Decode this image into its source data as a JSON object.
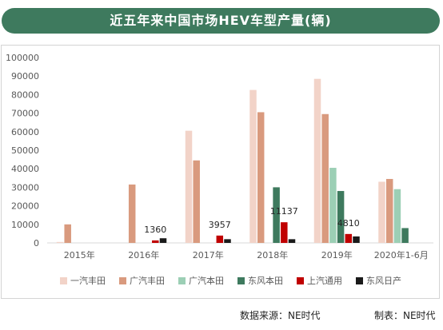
{
  "header": {
    "title": "近五年来中国市场HEV车型产量(辆)"
  },
  "footer": {
    "source": "数据来源：NE时代",
    "author": "制表：NE时代"
  },
  "chart_data": {
    "type": "bar",
    "title": "近五年来中国市场HEV车型产量(辆)",
    "categories": [
      "2015年",
      "2016年",
      "2017年",
      "2018年",
      "2019年",
      "2020年1-6月"
    ],
    "ylim": [
      0,
      100000
    ],
    "yticks": [
      0,
      10000,
      20000,
      30000,
      40000,
      50000,
      60000,
      70000,
      80000,
      90000,
      100000
    ],
    "grid": false,
    "legend_position": "bottom",
    "series": [
      {
        "name": "一汽丰田",
        "color": "#f2d3c8",
        "values": [
          500,
          0,
          60500,
          82500,
          88500,
          33000
        ]
      },
      {
        "name": "广汽丰田",
        "color": "#d99a7e",
        "values": [
          10000,
          31500,
          44500,
          70500,
          69500,
          34500
        ]
      },
      {
        "name": "广汽本田",
        "color": "#9ccfb5",
        "values": [
          0,
          0,
          0,
          0,
          40500,
          29000
        ]
      },
      {
        "name": "东风本田",
        "color": "#3e7a5e",
        "values": [
          0,
          0,
          0,
          30000,
          28000,
          8000
        ]
      },
      {
        "name": "上汽通用",
        "color": "#c00000",
        "values": [
          0,
          1360,
          3957,
          11137,
          4810,
          0
        ]
      },
      {
        "name": "东风日产",
        "color": "#1a1a1a",
        "values": [
          0,
          2500,
          2000,
          2000,
          3500,
          0
        ]
      }
    ],
    "data_labels": [
      {
        "series": "上汽通用",
        "category": "2016年",
        "text": "1360"
      },
      {
        "series": "上汽通用",
        "category": "2017年",
        "text": "3957"
      },
      {
        "series": "上汽通用",
        "category": "2018年",
        "text": "11137"
      },
      {
        "series": "上汽通用",
        "category": "2019年",
        "text": "4810"
      }
    ]
  }
}
